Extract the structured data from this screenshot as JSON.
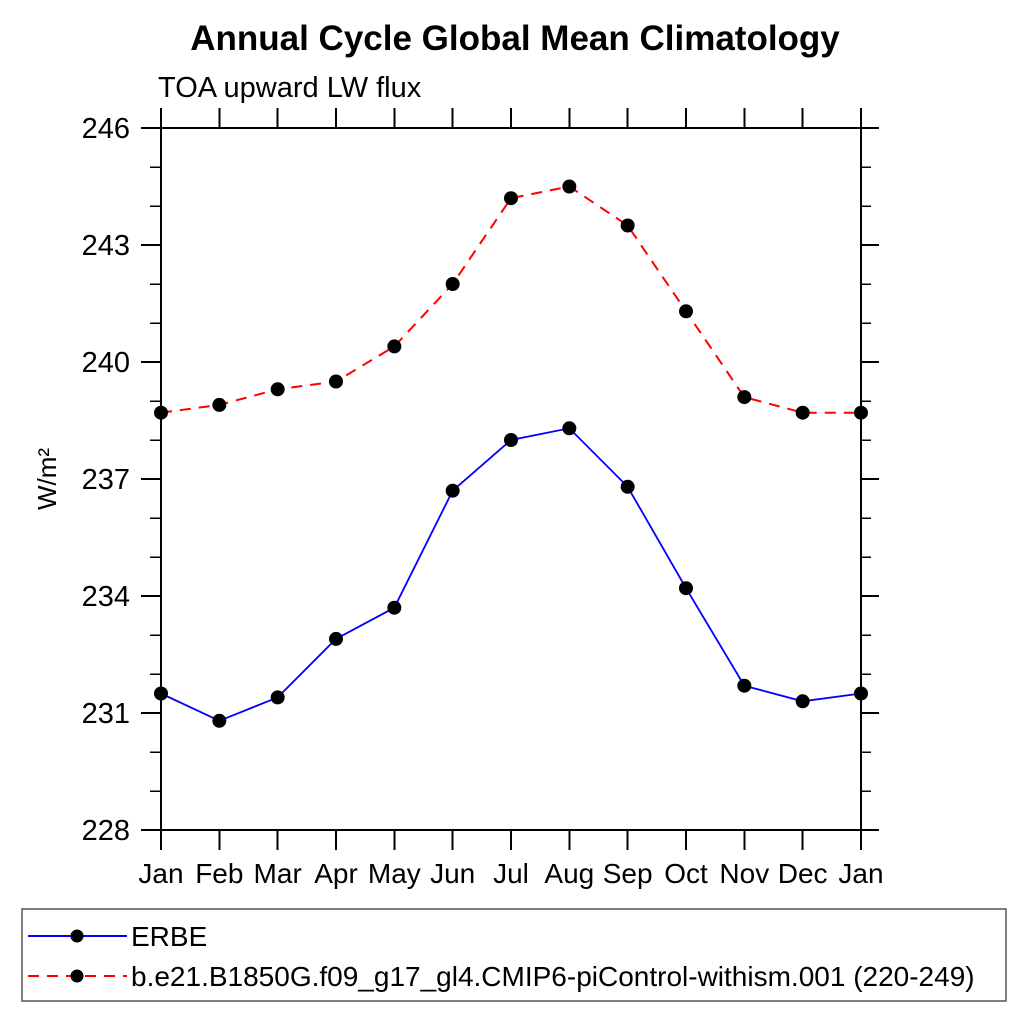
{
  "page": {
    "background_color": "#ffffff",
    "text_color": "#000000"
  },
  "chart_data": {
    "type": "line",
    "title": "Annual Cycle Global Mean Climatology",
    "subtitle": "TOA upward LW flux",
    "ylabel": "W/m²",
    "xlabel": "",
    "x_categories": [
      "Jan",
      "Feb",
      "Mar",
      "Apr",
      "May",
      "Jun",
      "Jul",
      "Aug",
      "Sep",
      "Oct",
      "Nov",
      "Dec",
      "Jan"
    ],
    "ylim": [
      228,
      246
    ],
    "ytick_major": [
      228,
      231,
      234,
      237,
      240,
      243,
      246
    ],
    "ytick_minor_step": 1,
    "grid": false,
    "axis_color": "#000000",
    "marker": "filled-circle",
    "marker_color": "#000000",
    "legend_position": "bottom-left-box",
    "series": [
      {
        "name": "ERBE",
        "color": "#0000ff",
        "line_style": "solid",
        "values": [
          231.5,
          230.8,
          231.4,
          232.9,
          233.7,
          236.7,
          238.0,
          238.3,
          236.8,
          234.2,
          231.7,
          231.3,
          231.5
        ]
      },
      {
        "name": "b.e21.B1850G.f09_g17_gl4.CMIP6-piControl-withism.001 (220-249)",
        "color": "#ff0000",
        "line_style": "dashed",
        "values": [
          238.7,
          238.9,
          239.3,
          239.5,
          240.4,
          242.0,
          244.2,
          244.5,
          243.5,
          241.3,
          239.1,
          238.7,
          238.7
        ]
      }
    ]
  }
}
